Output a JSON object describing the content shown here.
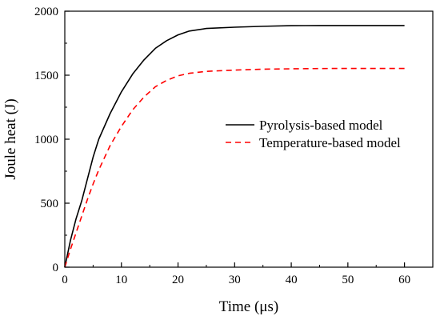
{
  "chart_data": {
    "type": "line",
    "title": "",
    "xlabel": "Time (μs)",
    "ylabel": "Joule heat (J)",
    "xlim": [
      0,
      65
    ],
    "ylim": [
      0,
      2000
    ],
    "xticks": [
      0,
      10,
      20,
      30,
      40,
      50,
      60
    ],
    "yticks": [
      0,
      500,
      1000,
      1500,
      2000
    ],
    "x_tick_labels": [
      "0",
      "10",
      "20",
      "30",
      "40",
      "50",
      "60"
    ],
    "y_tick_labels": [
      "0",
      "500",
      "1000",
      "1500",
      "2000"
    ],
    "grid": false,
    "legend_position": "center-right",
    "series": [
      {
        "name": "Pyrolysis-based model",
        "color": "#000000",
        "dash": "solid",
        "x": [
          0,
          1,
          2,
          3,
          4,
          5,
          6,
          8,
          10,
          12,
          14,
          16,
          18,
          20,
          22,
          25,
          30,
          35,
          40,
          45,
          50,
          55,
          60
        ],
        "y": [
          0,
          210,
          380,
          520,
          690,
          860,
          1000,
          1200,
          1370,
          1510,
          1620,
          1710,
          1770,
          1815,
          1845,
          1865,
          1875,
          1882,
          1887,
          1888,
          1888,
          1888,
          1888
        ]
      },
      {
        "name": "Temperature-based model",
        "color": "#ff0000",
        "dash": "dashed",
        "x": [
          0,
          1,
          2,
          3,
          4,
          5,
          6,
          8,
          10,
          12,
          14,
          16,
          18,
          20,
          22,
          25,
          30,
          35,
          40,
          45,
          50,
          55,
          60
        ],
        "y": [
          0,
          140,
          270,
          400,
          530,
          650,
          760,
          950,
          1100,
          1230,
          1330,
          1410,
          1460,
          1495,
          1515,
          1530,
          1540,
          1547,
          1550,
          1552,
          1553,
          1553,
          1553
        ]
      }
    ]
  }
}
